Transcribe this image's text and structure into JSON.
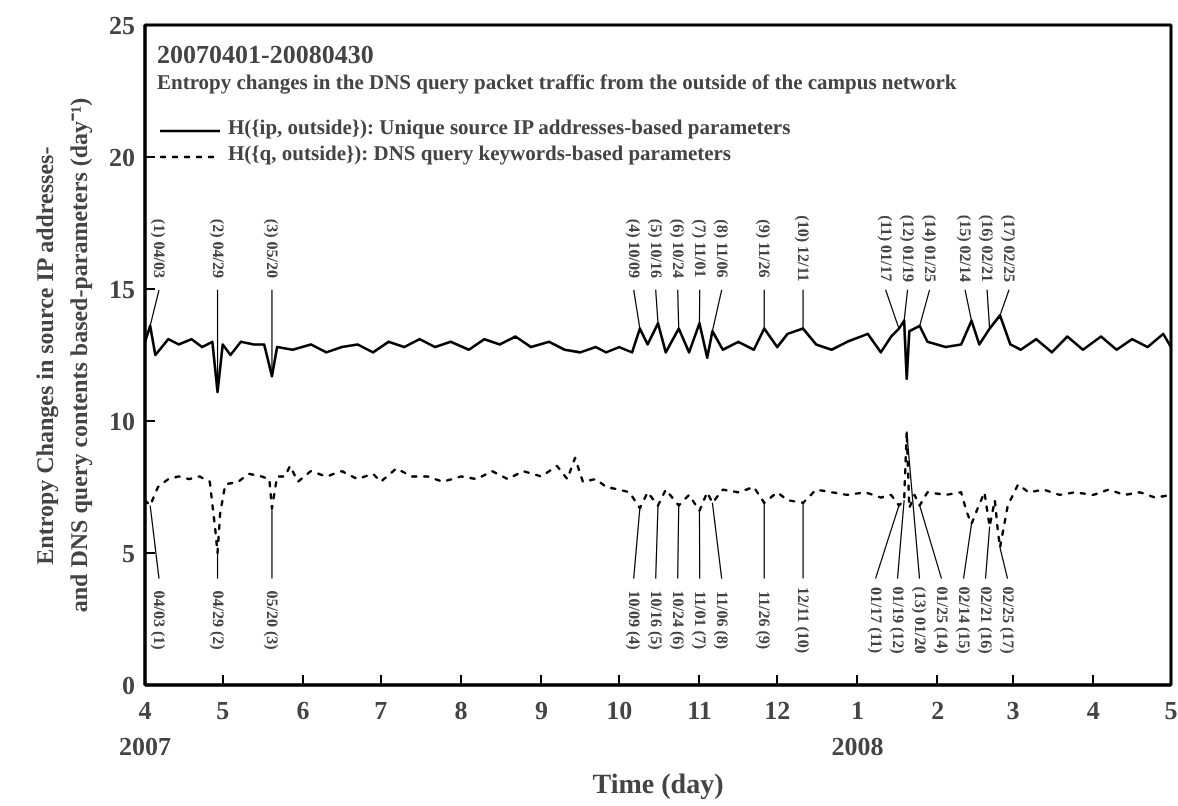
{
  "chart_data": {
    "type": "line",
    "title": "20070401-20080430",
    "subtitle": "Entropy changes in the DNS query packet traffic from the outside of the campus network",
    "xlabel": "Time (day)",
    "ylabel": "Entropy Changes in source IP addresses-\nand DNS query contents based-parameters (day⁻¹)",
    "xlim": [
      "2007-04-01",
      "2008-05-01"
    ],
    "ylim": [
      0,
      25
    ],
    "xticks": [
      {
        "value": "2007-04-01",
        "label": "4\n2007"
      },
      {
        "value": "2007-05-01",
        "label": "5"
      },
      {
        "value": "2007-06-01",
        "label": "6"
      },
      {
        "value": "2007-07-01",
        "label": "7"
      },
      {
        "value": "2007-08-01",
        "label": "8"
      },
      {
        "value": "2007-09-01",
        "label": "9"
      },
      {
        "value": "2007-10-01",
        "label": "10"
      },
      {
        "value": "2007-11-01",
        "label": "11"
      },
      {
        "value": "2007-12-01",
        "label": "12"
      },
      {
        "value": "2008-01-01",
        "label": "1\n2008"
      },
      {
        "value": "2008-02-01",
        "label": "2"
      },
      {
        "value": "2008-03-01",
        "label": "3"
      },
      {
        "value": "2008-04-01",
        "label": "4"
      },
      {
        "value": "2008-05-01",
        "label": "5"
      }
    ],
    "yticks": [
      0,
      5,
      10,
      15,
      20,
      25
    ],
    "grid": false,
    "legend": "top left",
    "marker": "none",
    "series": [
      {
        "name": "H({ip, outside}): Unique source IP addresses-based parameters",
        "color": "#000000",
        "line_style": "solid",
        "x": [
          "2007-04-01",
          "2007-04-03",
          "2007-04-05",
          "2007-04-10",
          "2007-04-14",
          "2007-04-19",
          "2007-04-23",
          "2007-04-27",
          "2007-04-29",
          "2007-05-01",
          "2007-05-04",
          "2007-05-08",
          "2007-05-13",
          "2007-05-17",
          "2007-05-20",
          "2007-05-22",
          "2007-05-28",
          "2007-06-04",
          "2007-06-10",
          "2007-06-16",
          "2007-06-22",
          "2007-06-28",
          "2007-07-04",
          "2007-07-10",
          "2007-07-16",
          "2007-07-22",
          "2007-07-28",
          "2007-08-04",
          "2007-08-10",
          "2007-08-16",
          "2007-08-22",
          "2007-08-28",
          "2007-09-04",
          "2007-09-10",
          "2007-09-16",
          "2007-09-22",
          "2007-09-26",
          "2007-10-01",
          "2007-10-06",
          "2007-10-09",
          "2007-10-12",
          "2007-10-16",
          "2007-10-19",
          "2007-10-24",
          "2007-10-28",
          "2007-11-01",
          "2007-11-04",
          "2007-11-06",
          "2007-11-10",
          "2007-11-16",
          "2007-11-22",
          "2007-11-26",
          "2007-12-01",
          "2007-12-05",
          "2007-12-11",
          "2007-12-16",
          "2007-12-22",
          "2007-12-28",
          "2008-01-05",
          "2008-01-10",
          "2008-01-14",
          "2008-01-17",
          "2008-01-19",
          "2008-01-20",
          "2008-01-21",
          "2008-01-25",
          "2008-01-28",
          "2008-02-04",
          "2008-02-10",
          "2008-02-14",
          "2008-02-17",
          "2008-02-21",
          "2008-02-25",
          "2008-02-29",
          "2008-03-04",
          "2008-03-10",
          "2008-03-16",
          "2008-03-22",
          "2008-03-28",
          "2008-04-04",
          "2008-04-10",
          "2008-04-16",
          "2008-04-22",
          "2008-04-28",
          "2008-05-01"
        ],
        "values": [
          13.0,
          13.6,
          12.5,
          13.1,
          12.9,
          13.1,
          12.8,
          13.0,
          11.1,
          12.9,
          12.5,
          13.0,
          12.9,
          12.9,
          11.7,
          12.8,
          12.7,
          12.9,
          12.6,
          12.8,
          12.9,
          12.6,
          13.0,
          12.8,
          13.1,
          12.8,
          13.0,
          12.7,
          13.1,
          12.9,
          13.2,
          12.8,
          13.0,
          12.7,
          12.6,
          12.8,
          12.6,
          12.8,
          12.6,
          13.5,
          12.9,
          13.7,
          12.6,
          13.5,
          12.6,
          13.7,
          12.4,
          13.4,
          12.7,
          13.0,
          12.7,
          13.5,
          12.8,
          13.3,
          13.5,
          12.9,
          12.7,
          13.0,
          13.3,
          12.6,
          13.2,
          13.5,
          13.8,
          11.6,
          13.4,
          13.6,
          13.0,
          12.8,
          12.9,
          13.8,
          12.9,
          13.5,
          14.0,
          12.9,
          12.7,
          13.1,
          12.6,
          13.2,
          12.7,
          13.2,
          12.7,
          13.1,
          12.8,
          13.3,
          12.8
        ]
      },
      {
        "name": "H({q, outside}): DNS query keywords-based parameters",
        "color": "#000000",
        "line_style": "dotted",
        "x": [
          "2007-04-01",
          "2007-04-03",
          "2007-04-06",
          "2007-04-10",
          "2007-04-14",
          "2007-04-18",
          "2007-04-22",
          "2007-04-26",
          "2007-04-28",
          "2007-04-29",
          "2007-04-30",
          "2007-05-02",
          "2007-05-07",
          "2007-05-11",
          "2007-05-16",
          "2007-05-19",
          "2007-05-20",
          "2007-05-22",
          "2007-05-25",
          "2007-05-27",
          "2007-05-30",
          "2007-06-04",
          "2007-06-10",
          "2007-06-16",
          "2007-06-22",
          "2007-06-28",
          "2007-07-01",
          "2007-07-07",
          "2007-07-13",
          "2007-07-19",
          "2007-07-25",
          "2007-08-01",
          "2007-08-07",
          "2007-08-13",
          "2007-08-19",
          "2007-08-25",
          "2007-09-01",
          "2007-09-07",
          "2007-09-11",
          "2007-09-14",
          "2007-09-17",
          "2007-09-22",
          "2007-09-26",
          "2007-10-01",
          "2007-10-05",
          "2007-10-09",
          "2007-10-12",
          "2007-10-16",
          "2007-10-19",
          "2007-10-24",
          "2007-10-28",
          "2007-11-01",
          "2007-11-04",
          "2007-11-06",
          "2007-11-10",
          "2007-11-16",
          "2007-11-22",
          "2007-11-26",
          "2007-12-01",
          "2007-12-05",
          "2007-12-11",
          "2007-12-16",
          "2007-12-22",
          "2007-12-28",
          "2008-01-04",
          "2008-01-10",
          "2008-01-14",
          "2008-01-17",
          "2008-01-19",
          "2008-01-20",
          "2008-01-21",
          "2008-01-23",
          "2008-01-25",
          "2008-01-28",
          "2008-02-04",
          "2008-02-10",
          "2008-02-12",
          "2008-02-14",
          "2008-02-16",
          "2008-02-19",
          "2008-02-21",
          "2008-02-23",
          "2008-02-24",
          "2008-02-25",
          "2008-02-28",
          "2008-03-03",
          "2008-03-07",
          "2008-03-13",
          "2008-03-19",
          "2008-03-25",
          "2008-04-01",
          "2008-04-07",
          "2008-04-13",
          "2008-04-19",
          "2008-04-25",
          "2008-05-01"
        ],
        "values": [
          7.0,
          6.8,
          7.5,
          7.8,
          7.9,
          7.8,
          7.9,
          7.7,
          6.0,
          5.0,
          6.5,
          7.6,
          7.7,
          8.0,
          7.9,
          7.8,
          6.7,
          7.9,
          7.9,
          8.3,
          7.7,
          8.1,
          7.9,
          8.1,
          7.8,
          8.0,
          7.7,
          8.2,
          7.9,
          7.9,
          7.7,
          7.9,
          7.8,
          8.1,
          7.8,
          8.1,
          7.9,
          8.3,
          7.8,
          8.6,
          7.7,
          7.8,
          7.5,
          7.4,
          7.3,
          6.7,
          7.3,
          6.8,
          7.4,
          6.8,
          7.2,
          6.6,
          7.3,
          6.9,
          7.4,
          7.3,
          7.5,
          6.9,
          7.3,
          7.0,
          6.9,
          7.4,
          7.3,
          7.2,
          7.3,
          7.1,
          7.2,
          6.8,
          7.0,
          9.6,
          6.7,
          7.2,
          6.8,
          7.3,
          7.2,
          7.3,
          6.6,
          6.1,
          6.6,
          7.3,
          6.0,
          7.0,
          6.0,
          5.2,
          6.8,
          7.6,
          7.3,
          7.4,
          7.2,
          7.3,
          7.2,
          7.4,
          7.2,
          7.3,
          7.1,
          7.2
        ]
      }
    ],
    "annotations": [
      {
        "text": "(1) 04/03",
        "x": "2007-04-03",
        "y": 13.6
      },
      {
        "text": "(2) 04/29",
        "x": "2007-04-29",
        "y": 11.1
      },
      {
        "text": "(3) 05/20",
        "x": "2007-05-20",
        "y": 11.7
      },
      {
        "text": "(4) 10/09",
        "x": "2007-10-09",
        "y": 13.5
      },
      {
        "text": "(5) 10/16",
        "x": "2007-10-16",
        "y": 13.7
      },
      {
        "text": "(6) 10/24",
        "x": "2007-10-24",
        "y": 13.5
      },
      {
        "text": "(7) 11/01",
        "x": "2007-11-01",
        "y": 13.7
      },
      {
        "text": "(8) 11/06",
        "x": "2007-11-06",
        "y": 13.4
      },
      {
        "text": "(9) 11/26",
        "x": "2007-11-26",
        "y": 13.5
      },
      {
        "text": "(10) 12/11",
        "x": "2007-12-11",
        "y": 13.5
      },
      {
        "text": "(11) 01/17",
        "x": "2008-01-17",
        "y": 13.5
      },
      {
        "text": "(12) 01/19",
        "x": "2008-01-19",
        "y": 13.8
      },
      {
        "text": "(14) 01/25",
        "x": "2008-01-25",
        "y": 13.6
      },
      {
        "text": "(15) 02/14",
        "x": "2008-02-14",
        "y": 13.8
      },
      {
        "text": "(16) 02/21",
        "x": "2008-02-21",
        "y": 13.5
      },
      {
        "text": "(17) 02/25",
        "x": "2008-02-25",
        "y": 14.0
      },
      {
        "text": "04/03 (1)",
        "x": "2007-04-03",
        "y": 6.8
      },
      {
        "text": "04/29 (2)",
        "x": "2007-04-29",
        "y": 5.0
      },
      {
        "text": "05/20 (3)",
        "x": "2007-05-20",
        "y": 6.7
      },
      {
        "text": "10/09 (4)",
        "x": "2007-10-09",
        "y": 6.7
      },
      {
        "text": "10/16 (5)",
        "x": "2007-10-16",
        "y": 6.8
      },
      {
        "text": "10/24 (6)",
        "x": "2007-10-24",
        "y": 6.8
      },
      {
        "text": "11/01 (7)",
        "x": "2007-11-01",
        "y": 6.6
      },
      {
        "text": "11/06 (8)",
        "x": "2007-11-06",
        "y": 6.9
      },
      {
        "text": "11/26 (9)",
        "x": "2007-11-26",
        "y": 6.9
      },
      {
        "text": "12/11 (10)",
        "x": "2007-12-11",
        "y": 6.9
      },
      {
        "text": "01/17 (11)",
        "x": "2008-01-17",
        "y": 6.8
      },
      {
        "text": "01/19 (12)",
        "x": "2008-01-19",
        "y": 7.0
      },
      {
        "text": "(13) 01/20",
        "x": "2008-01-20",
        "y": 9.6
      },
      {
        "text": "01/25 (14)",
        "x": "2008-01-25",
        "y": 6.8
      },
      {
        "text": "02/14 (15)",
        "x": "2008-02-14",
        "y": 6.1
      },
      {
        "text": "02/21 (16)",
        "x": "2008-02-21",
        "y": 6.0
      },
      {
        "text": "02/25 (17)",
        "x": "2008-02-25",
        "y": 5.2
      }
    ]
  }
}
